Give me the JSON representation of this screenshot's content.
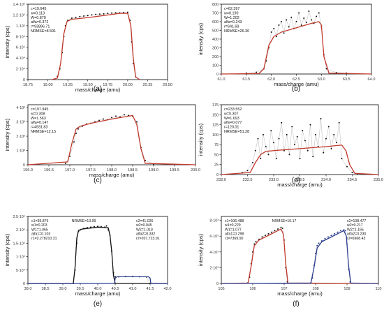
{
  "chart_data": [
    {
      "type": "scatter",
      "panel_label": "(a)",
      "xlabel": "mass/charge (amu)",
      "ylabel": "intensity (cps)",
      "xlim": [
        18.75,
        20.5
      ],
      "ylim": [
        0,
        140000
      ],
      "x_ticks": [
        "18.75",
        "19.00",
        "19.25",
        "19.50",
        "19.75",
        "20.00",
        "20.25",
        "20.50"
      ],
      "y_ticks": [
        "0",
        "2·10⁴",
        "4·10⁴",
        "6·10⁴",
        "8·10⁴",
        "1·10⁵",
        "1.2·10⁵",
        "1.4·10⁵"
      ],
      "y_tick_values": [
        0,
        20000,
        40000,
        60000,
        80000,
        100000,
        120000,
        140000
      ],
      "annotations": [
        "c=19.645",
        "w=0.113",
        "W=0.870",
        "alfa=0.372",
        "r=93896.71",
        "NRMSE=8.591"
      ],
      "series": [
        {
          "role": "measured",
          "color": "#111111",
          "x": [
            19.12,
            19.15,
            19.18,
            19.2,
            19.22,
            19.25,
            19.3,
            19.35,
            19.4,
            19.45,
            19.5,
            19.55,
            19.6,
            19.65,
            19.7,
            19.75,
            19.8,
            19.85,
            19.9,
            19.95,
            20.0,
            20.03,
            20.05,
            20.07,
            20.1
          ],
          "y": [
            6000,
            20000,
            50000,
            80000,
            100000,
            110000,
            114000,
            115000,
            117000,
            118000,
            119000,
            120000,
            121000,
            121500,
            122000,
            123000,
            123500,
            124000,
            124000,
            124500,
            125000,
            110000,
            70000,
            30000,
            5000
          ]
        },
        {
          "role": "fit",
          "color": "#c0392b",
          "x": [
            19.05,
            19.12,
            19.16,
            19.2,
            19.24,
            19.3,
            19.5,
            19.7,
            19.9,
            20.0,
            20.04,
            20.07,
            20.1,
            20.15
          ],
          "y": [
            0,
            3000,
            30000,
            85000,
            108000,
            112000,
            115000,
            119000,
            123000,
            123000,
            100000,
            40000,
            5000,
            0
          ]
        }
      ]
    },
    {
      "type": "scatter",
      "panel_label": "(b)",
      "xlabel": "mass/charge (amu)",
      "ylabel": "intensity (cps)",
      "xlim": [
        61.0,
        64.0
      ],
      "ylim": [
        0,
        800
      ],
      "x_ticks": [
        "61.0",
        "61.5",
        "62.0",
        "62.5",
        "63.0",
        "63.5",
        "64.0"
      ],
      "y_ticks": [
        "0",
        "100",
        "200",
        "300",
        "400",
        "500",
        "600",
        "700",
        "800"
      ],
      "y_tick_values": [
        0,
        100,
        200,
        300,
        400,
        500,
        600,
        700,
        800
      ],
      "annotations": [
        "c=62.397",
        "w=0.190",
        "W=1.202",
        "alfa=0.243",
        "r=641.69",
        "NRMSE=26.30"
      ],
      "series": [
        {
          "role": "measured",
          "color": "#111111",
          "x": [
            61.5,
            61.7,
            61.85,
            61.9,
            61.95,
            62.0,
            62.05,
            62.1,
            62.15,
            62.2,
            62.25,
            62.3,
            62.35,
            62.4,
            62.45,
            62.5,
            62.55,
            62.6,
            62.65,
            62.7,
            62.75,
            62.8,
            62.85,
            62.9,
            62.95,
            63.0,
            63.05,
            63.1,
            63.3,
            63.5
          ],
          "y": [
            10,
            20,
            60,
            150,
            300,
            480,
            520,
            430,
            560,
            600,
            470,
            620,
            540,
            650,
            520,
            600,
            700,
            560,
            640,
            590,
            720,
            620,
            580,
            660,
            700,
            540,
            220,
            60,
            15,
            10
          ]
        },
        {
          "role": "fit",
          "color": "#c0392b",
          "x": [
            61.0,
            61.75,
            61.85,
            61.95,
            62.05,
            62.2,
            62.5,
            62.8,
            62.95,
            63.0,
            63.05,
            63.15,
            64.0
          ],
          "y": [
            0,
            5,
            60,
            330,
            430,
            480,
            530,
            580,
            600,
            560,
            200,
            10,
            0
          ]
        }
      ]
    },
    {
      "type": "scatter",
      "panel_label": "(c)",
      "xlabel": "mass/charge (amu)",
      "ylabel": "intensity (cps)",
      "xlim": [
        196.0,
        200.0
      ],
      "ylim": [
        0,
        4200
      ],
      "x_ticks": [
        "196.0",
        "196.5",
        "197.0",
        "197.5",
        "198.0",
        "198.5",
        "199.0",
        "199.5",
        "200.0"
      ],
      "y_ticks": [
        "0",
        "1·10³",
        "2·10³",
        "3·10³",
        "4·10³"
      ],
      "y_tick_values": [
        0,
        1000,
        2000,
        3000,
        4000
      ],
      "annotations": [
        "c=197.945",
        "w=0.308",
        "W=1.563",
        "alfa=0.147",
        "r=4931.83",
        "NRMSE=12.15"
      ],
      "series": [
        {
          "role": "measured",
          "color": "#111111",
          "x": [
            196.9,
            197.0,
            197.1,
            197.15,
            197.2,
            197.3,
            197.4,
            197.5,
            197.6,
            197.7,
            197.8,
            197.9,
            198.0,
            198.1,
            198.2,
            198.3,
            198.4,
            198.5,
            198.6,
            198.7,
            198.8,
            199.0
          ],
          "y": [
            100,
            600,
            1600,
            2200,
            2500,
            2700,
            2850,
            2900,
            3000,
            3100,
            3200,
            3150,
            3300,
            3400,
            3350,
            3500,
            3450,
            3400,
            3000,
            1200,
            300,
            50
          ]
        },
        {
          "role": "fit",
          "color": "#c0392b",
          "x": [
            196.0,
            196.95,
            197.05,
            197.15,
            197.25,
            197.5,
            198.0,
            198.5,
            198.6,
            198.7,
            198.8,
            200.0
          ],
          "y": [
            0,
            200,
            1500,
            2500,
            2700,
            2900,
            3200,
            3450,
            2800,
            1100,
            100,
            0
          ]
        }
      ]
    },
    {
      "type": "scatter",
      "panel_label": "(d)",
      "xlabel": "mass/charge (amu)",
      "ylabel": "intensity (cps)",
      "xlim": [
        232.0,
        235.0
      ],
      "ylim": [
        0,
        175
      ],
      "x_ticks": [
        "232.0",
        "232.5",
        "233.0",
        "233.5",
        "234.0",
        "234.5",
        "235.0"
      ],
      "y_ticks": [
        "0",
        "25",
        "50",
        "75",
        "100",
        "125",
        "150",
        "175"
      ],
      "y_tick_values": [
        0,
        25,
        50,
        75,
        100,
        125,
        150,
        175
      ],
      "annotations": [
        "c=233.552",
        "w=0.307",
        "W=1.693",
        "alfa=0.077",
        "r=120.01",
        "NRMSE=51.28"
      ],
      "series": [
        {
          "role": "measured",
          "color": "#111111",
          "x": [
            232.4,
            232.5,
            232.6,
            232.65,
            232.7,
            232.75,
            232.8,
            232.85,
            232.9,
            232.95,
            233.0,
            233.05,
            233.1,
            233.15,
            233.2,
            233.25,
            233.3,
            233.35,
            233.4,
            233.45,
            233.5,
            233.55,
            233.6,
            233.65,
            233.7,
            233.75,
            233.8,
            233.85,
            233.9,
            233.95,
            234.0,
            234.05,
            234.1,
            234.15,
            234.2,
            234.25,
            234.3,
            234.4,
            234.5,
            234.6
          ],
          "y": [
            5,
            10,
            30,
            60,
            90,
            40,
            100,
            70,
            50,
            110,
            80,
            40,
            90,
            130,
            60,
            100,
            50,
            120,
            75,
            95,
            40,
            110,
            85,
            60,
            125,
            45,
            100,
            70,
            140,
            55,
            90,
            120,
            65,
            100,
            80,
            130,
            40,
            20,
            5,
            2
          ]
        },
        {
          "role": "fit",
          "color": "#c0392b",
          "x": [
            232.0,
            232.55,
            232.65,
            232.75,
            232.85,
            233.0,
            233.5,
            234.0,
            234.3,
            234.38,
            234.45,
            234.55,
            235.0
          ],
          "y": [
            0,
            5,
            30,
            50,
            58,
            60,
            65,
            70,
            74,
            60,
            25,
            3,
            0
          ]
        }
      ]
    },
    {
      "type": "scatter",
      "panel_label": "(e)",
      "xlabel": "mass/charge (amu)",
      "ylabel": "intensity (cps)",
      "xlim": [
        38.0,
        42.0
      ],
      "ylim": [
        0,
        250000
      ],
      "x_ticks": [
        "38.0",
        "38.5",
        "39.0",
        "39.5",
        "40.0",
        "40.5",
        "41.0",
        "41.5",
        "42.0"
      ],
      "y_ticks": [
        "0",
        "5·10⁴",
        "1·10⁵",
        "1.5·10⁵",
        "2·10⁵",
        "2.5·10⁵"
      ],
      "y_tick_values": [
        0,
        50000,
        100000,
        150000,
        200000,
        250000
      ],
      "annotations": [
        "NRMSE=13.99"
      ],
      "annotations_left": [
        "c1=39.876",
        "w1=0.203",
        "W1=1.065",
        "alfa1=0.103",
        "r1=2.278210.31"
      ],
      "annotations_right": [
        "c2=41.026",
        "w2=0.045",
        "W2=1.019",
        "alfa2=0.332",
        "r2=207,723.91"
      ],
      "series": [
        {
          "role": "measured",
          "color": "#111111",
          "x": [
            39.3,
            39.35,
            39.4,
            39.45,
            39.5,
            39.6,
            39.7,
            39.8,
            39.9,
            40.0,
            40.1,
            40.2,
            40.25,
            40.3,
            40.35,
            40.4,
            40.45,
            40.5,
            40.6,
            40.8,
            41.0,
            41.2,
            41.4,
            41.5
          ],
          "y": [
            0,
            50000,
            150000,
            195000,
            200000,
            205000,
            208000,
            210000,
            212000,
            213000,
            212000,
            210000,
            215000,
            200000,
            180000,
            120000,
            40000,
            25000,
            25000,
            26000,
            26000,
            25000,
            24000,
            0
          ]
        },
        {
          "role": "fit",
          "color": "#111111",
          "x": [
            38.0,
            39.3,
            39.35,
            39.4,
            39.45,
            39.55,
            40.0,
            40.3,
            40.35,
            40.4,
            40.45,
            40.5,
            42.0
          ],
          "y": [
            0,
            0,
            60000,
            170000,
            198000,
            203000,
            210000,
            208000,
            180000,
            120000,
            30000,
            0,
            0
          ]
        },
        {
          "role": "fit",
          "color": "#2c3e91",
          "x": [
            38.0,
            40.48,
            40.5,
            40.55,
            41.45,
            41.5,
            41.52,
            42.0
          ],
          "y": [
            0,
            0,
            20000,
            25000,
            25000,
            20000,
            0,
            0
          ]
        }
      ]
    },
    {
      "type": "scatter",
      "panel_label": "(f)",
      "xlabel": "mass/charge (amu)",
      "ylabel": "intensity (cps)",
      "xlim": [
        105,
        110
      ],
      "ylim": [
        0,
        8500
      ],
      "x_ticks": [
        "105",
        "106",
        "107",
        "108",
        "109",
        "110"
      ],
      "y_ticks": [
        "0",
        "2·10³",
        "4·10³",
        "6·10³",
        "8·10³"
      ],
      "y_tick_values": [
        0,
        2000,
        4000,
        6000,
        8000
      ],
      "annotations": [
        "NRMSE=10.17"
      ],
      "annotations_left": [
        "c1=106.488",
        "w1=0.229",
        "W1=1.077",
        "alfa1=0.298",
        "r1=7369.90"
      ],
      "annotations_right": [
        "c2=108.477",
        "w2=0.217",
        "W2=1.165",
        "alfa2=0.230",
        "r2=6968.43"
      ],
      "series": [
        {
          "role": "measured",
          "color": "#111111",
          "x": [
            105.85,
            105.9,
            105.95,
            106.0,
            106.05,
            106.1,
            106.2,
            106.3,
            106.4,
            106.5,
            106.6,
            106.7,
            106.8,
            106.9,
            106.95,
            107.0,
            107.05,
            107.1
          ],
          "y": [
            100,
            800,
            2500,
            4000,
            5000,
            5300,
            5600,
            5900,
            6100,
            6300,
            6500,
            6700,
            6900,
            7100,
            7000,
            5500,
            2000,
            200
          ]
        },
        {
          "role": "fit",
          "color": "#c0392b",
          "x": [
            105,
            105.85,
            105.95,
            106.05,
            106.2,
            106.5,
            106.9,
            106.98,
            107.05,
            107.12,
            110
          ],
          "y": [
            0,
            50,
            2200,
            4800,
            5500,
            6100,
            6900,
            6200,
            2500,
            50,
            0
          ]
        },
        {
          "role": "measured",
          "color": "#2c3e91",
          "x": [
            107.85,
            107.9,
            107.95,
            108.0,
            108.05,
            108.1,
            108.2,
            108.3,
            108.4,
            108.5,
            108.6,
            108.7,
            108.8,
            108.9,
            108.95,
            109.0,
            109.05,
            109.1
          ],
          "y": [
            100,
            700,
            2300,
            3800,
            4800,
            5100,
            5400,
            5700,
            5900,
            6100,
            6300,
            6500,
            6700,
            6800,
            6700,
            5000,
            1800,
            200
          ]
        },
        {
          "role": "fit",
          "color": "#2c3e91",
          "x": [
            105,
            107.85,
            107.95,
            108.05,
            108.2,
            108.5,
            108.9,
            108.98,
            109.05,
            109.12,
            110
          ],
          "y": [
            0,
            50,
            2000,
            4500,
            5300,
            5900,
            6700,
            6000,
            2300,
            50,
            0
          ]
        }
      ]
    }
  ]
}
